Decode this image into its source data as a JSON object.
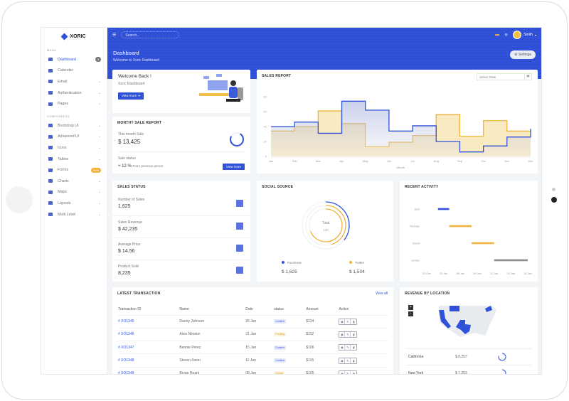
{
  "brand": "XORIC",
  "sidebar": {
    "menu_title": "MENU",
    "components_title": "COMPONENTS",
    "menu": [
      {
        "label": "Dashboard",
        "badge": "3",
        "active": true
      },
      {
        "label": "Calendar"
      },
      {
        "label": "Email",
        "chevron": true
      },
      {
        "label": "Authentication",
        "chevron": true
      },
      {
        "label": "Pages",
        "chevron": true
      }
    ],
    "components": [
      {
        "label": "Bootstrap UI",
        "chevron": true
      },
      {
        "label": "Advanced UI",
        "chevron": true
      },
      {
        "label": "Icons",
        "chevron": true
      },
      {
        "label": "Tables",
        "chevron": true
      },
      {
        "label": "Forms",
        "badge": "New"
      },
      {
        "label": "Charts",
        "chevron": true
      },
      {
        "label": "Maps",
        "chevron": true
      },
      {
        "label": "Layouts",
        "chevron": true
      },
      {
        "label": "Multi Level",
        "chevron": true
      }
    ]
  },
  "topbar": {
    "search_placeholder": "Search...",
    "user": "Smith"
  },
  "hero": {
    "title": "Dashboard",
    "subtitle": "Welcome to Xoric Dashboard",
    "settings": "Settings"
  },
  "welcome": {
    "title": "Welcome Back !",
    "subtitle": "Xoric Dashboard",
    "button": "View more"
  },
  "monthly": {
    "title": "MONTHY SALE REPORT",
    "this_month_label": "This month Sale",
    "this_month_value": "$ 13,425",
    "status_label": "Sale status",
    "change": "+ 12 %",
    "change_note": "From previous period",
    "button": "View more"
  },
  "sales_report": {
    "title": "SALES REPORT",
    "date_placeholder": "Select Date"
  },
  "chart_data": {
    "type": "line",
    "step": true,
    "categories": [
      "Jan",
      "Feb",
      "Mar",
      "Apr",
      "May",
      "Jun",
      "Jul",
      "Aug",
      "Sep",
      "Oct",
      "Nov",
      "Dec"
    ],
    "xlabel": "Month",
    "ylim": [
      0,
      80
    ],
    "yticks": [
      0,
      20,
      40,
      60,
      80
    ],
    "series": [
      {
        "color": "#2f52d8",
        "values": [
          40,
          46,
          31,
          74,
          62,
          34,
          41,
          20,
          6,
          14,
          26,
          37
        ]
      },
      {
        "color": "#f0b43c",
        "values": [
          34,
          40,
          61,
          44,
          13,
          19,
          28,
          56,
          27,
          48,
          34,
          32
        ]
      }
    ]
  },
  "sales_status": {
    "title": "SALES STATUS",
    "items": [
      {
        "label": "Number of Sales",
        "value": "1,625"
      },
      {
        "label": "Sales Revenue",
        "value": "$ 42,235"
      },
      {
        "label": "Average Price",
        "value": "$ 14.56"
      },
      {
        "label": "Product Sold",
        "value": "8,235"
      }
    ]
  },
  "social": {
    "title": "SOCIAL SOURCE",
    "center_label": "Total",
    "center_value": "166",
    "items": [
      {
        "label": "Facebook",
        "value": "$ 1,625",
        "color": "#2f52d8"
      },
      {
        "label": "Twitter",
        "value": "$ 1,504",
        "color": "#f0b43c"
      }
    ]
  },
  "activity": {
    "title": "RECENT ACTIVITY",
    "ticks": [
      "31 Dec",
      "03 Jan",
      "06 Jan",
      "09 Jan",
      "12 Jan",
      "15 Jan",
      "18 Jan"
    ],
    "rows": [
      {
        "name": "Jack",
        "start": 2,
        "end": 4,
        "color": "#2f52d8"
      },
      {
        "name": "Thomas",
        "start": 4,
        "end": 8,
        "color": "#f0b43c"
      },
      {
        "name": "David",
        "start": 8,
        "end": 12,
        "color": "#f0b43c"
      },
      {
        "name": "James",
        "start": 12,
        "end": 18,
        "color": "#8a8f94"
      }
    ]
  },
  "transactions": {
    "title": "LATEST TRANSACTION",
    "view_all": "View all",
    "columns": [
      "Transaction ID",
      "Name",
      "Date",
      "status",
      "Amount",
      "Action"
    ],
    "rows": [
      {
        "id": "# XO1345",
        "name": "Danny Johnson",
        "date": "26 Jan",
        "status": "Confirm",
        "amount": "$124"
      },
      {
        "id": "# XO1346",
        "name": "Alvin Newton",
        "date": "21 Jan",
        "status": "Pending",
        "amount": "$112"
      },
      {
        "id": "# XO1347",
        "name": "Bennie Perez",
        "date": "15 Jan",
        "status": "Confirm",
        "amount": "$106"
      },
      {
        "id": "# XO1348",
        "name": "Steven Kwon",
        "date": "11 Jan",
        "status": "Confirm",
        "amount": "$115"
      },
      {
        "id": "# XO1349",
        "name": "Bryan Roark",
        "date": "08 Jan",
        "status": "Cancel",
        "amount": "$105"
      }
    ]
  },
  "location": {
    "title": "REVENUE BY LOCATION",
    "zoom_in": "+",
    "zoom_out": "-",
    "rows": [
      {
        "name": "California",
        "value": "$ 8,257"
      },
      {
        "name": "New York",
        "value": "$ 7,253"
      }
    ]
  }
}
